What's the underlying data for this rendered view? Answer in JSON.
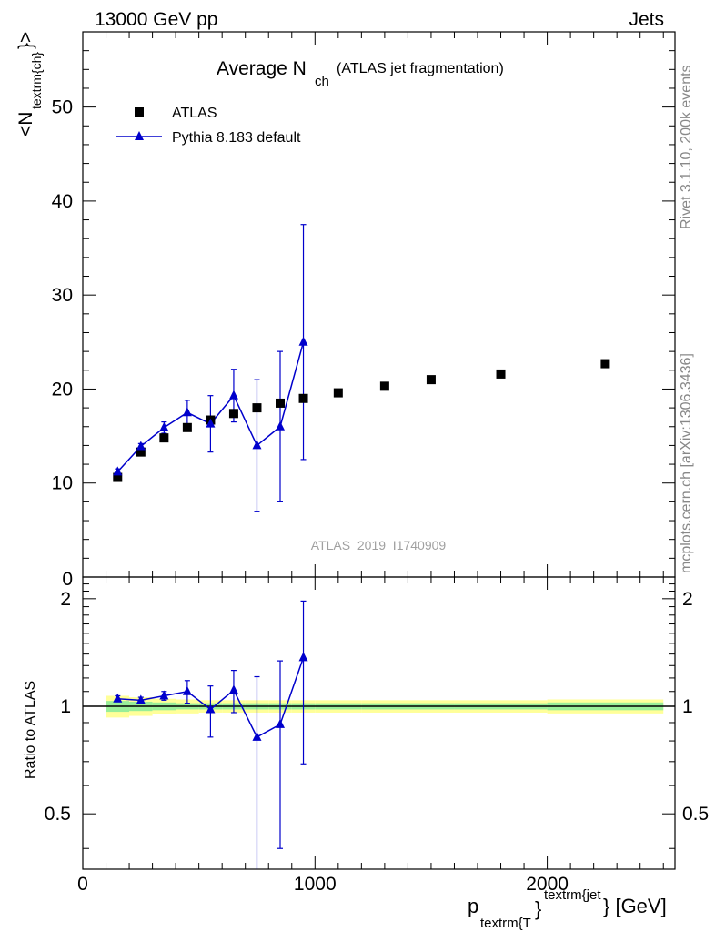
{
  "header": {
    "energy_label": "13000 GeV pp",
    "category_label": "Jets"
  },
  "side_labels": {
    "rivet": "Rivet 3.1.10,  200k events",
    "mcplots": "mcplots.cern.ch [arXiv:1306.3436]"
  },
  "chart_data": [
    {
      "type": "scatter",
      "panel": "main",
      "title_main": "Average N",
      "title_sub": "ch",
      "title_suffix": "(ATLAS jet fragmentation)",
      "watermark": "ATLAS_2019_I1740909",
      "ylabel_main": "<N",
      "ylabel_sub": "textrm{ch}",
      "ylabel_close": "}>",
      "xlim": [
        0,
        2550
      ],
      "ylim": [
        0,
        58
      ],
      "yticks": [
        10,
        20,
        30,
        40,
        50
      ],
      "ytick_labels": [
        "10",
        "20",
        "30",
        "40",
        "50"
      ],
      "y_bottom_label": "0",
      "legend_position": "top-left",
      "series": [
        {
          "name": "ATLAS",
          "marker": "square",
          "color": "#000000",
          "x": [
            150,
            250,
            350,
            450,
            550,
            650,
            750,
            850,
            950,
            1100,
            1300,
            1500,
            1800,
            2250
          ],
          "y": [
            10.6,
            13.3,
            14.8,
            15.9,
            16.7,
            17.4,
            18.0,
            18.5,
            19.0,
            19.6,
            20.3,
            21.0,
            21.6,
            22.7
          ]
        },
        {
          "name": "Pythia 8.183 default",
          "marker": "triangle",
          "color": "#0000cc",
          "x": [
            150,
            250,
            350,
            450,
            550,
            650,
            750,
            850,
            950
          ],
          "y": [
            11.2,
            13.9,
            15.9,
            17.5,
            16.3,
            19.3,
            14.0,
            16.0,
            25.0
          ],
          "err_low": [
            0.3,
            0.3,
            0.6,
            1.3,
            3.0,
            2.8,
            7.0,
            8.0,
            12.5
          ],
          "err_high": [
            0.3,
            0.3,
            0.6,
            1.3,
            3.0,
            2.8,
            7.0,
            8.0,
            12.5
          ]
        }
      ]
    },
    {
      "type": "line",
      "panel": "ratio",
      "ylabel": "Ratio to ATLAS",
      "xlim": [
        0,
        2550
      ],
      "ylim": [
        0.35,
        2.3
      ],
      "yscale": "log",
      "yticks": [
        0.5,
        1,
        2
      ],
      "ytick_labels": [
        "0.5",
        "1",
        "2"
      ],
      "xticks": [
        0,
        1000,
        2000
      ],
      "xtick_labels": [
        "0",
        "1000",
        "2000"
      ],
      "xlabel_main": "p",
      "xlabel_sub": "textrm{T",
      "xlabel_close": "}",
      "xlabel_sup": "textrm{jet",
      "xlabel_unit": "} [GeV]",
      "reference_line": 1.0,
      "bands": {
        "edges": [
          100,
          200,
          300,
          400,
          500,
          600,
          700,
          800,
          900,
          1000,
          1200,
          1400,
          1600,
          2000,
          2500
        ],
        "yellow_half_width": [
          0.07,
          0.06,
          0.05,
          0.045,
          0.04,
          0.04,
          0.04,
          0.04,
          0.04,
          0.04,
          0.04,
          0.04,
          0.04,
          0.045
        ],
        "green_half_width": [
          0.035,
          0.03,
          0.025,
          0.02,
          0.02,
          0.02,
          0.02,
          0.02,
          0.02,
          0.02,
          0.02,
          0.02,
          0.02,
          0.025
        ],
        "yellow_color": "#ffff99",
        "green_color": "#99ee99"
      },
      "series": [
        {
          "name": "Pythia 8.183 default / ATLAS",
          "marker": "triangle",
          "color": "#0000cc",
          "x": [
            150,
            250,
            350,
            450,
            550,
            650,
            750,
            850,
            950
          ],
          "y": [
            1.05,
            1.04,
            1.07,
            1.1,
            0.98,
            1.11,
            0.82,
            0.89,
            1.37
          ],
          "err_low": [
            0.02,
            0.02,
            0.03,
            0.08,
            0.16,
            0.15,
            0.48,
            0.49,
            0.68
          ],
          "err_high": [
            0.02,
            0.02,
            0.03,
            0.08,
            0.16,
            0.15,
            0.39,
            0.45,
            0.6
          ]
        }
      ]
    }
  ]
}
